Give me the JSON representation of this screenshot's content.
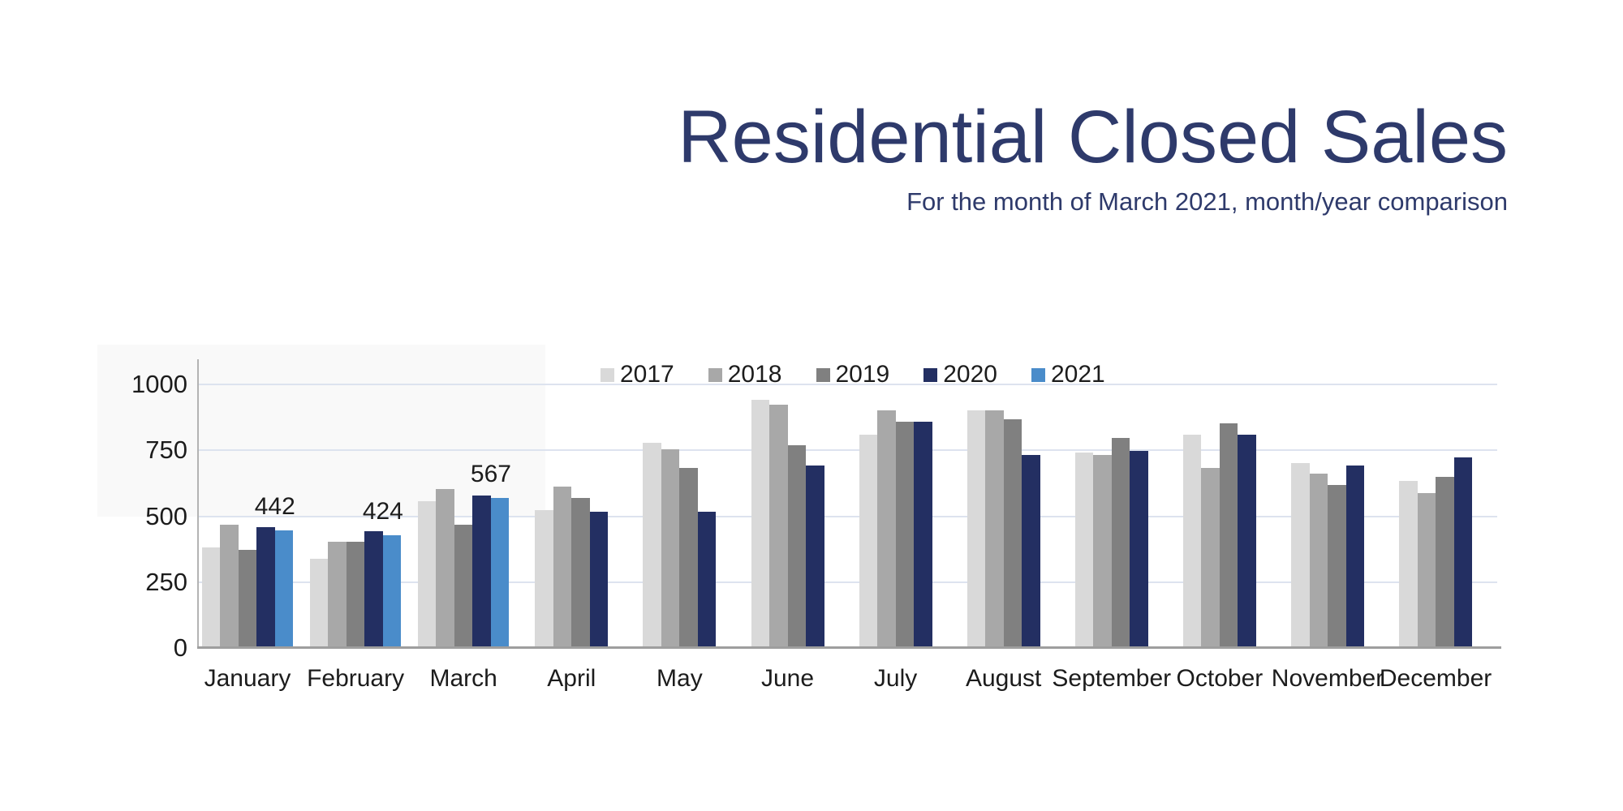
{
  "title": "Residential Closed Sales",
  "subtitle": "For the month of March 2021, month/year comparison",
  "palette": {
    "title_color": "#2e3a6b",
    "grid_color": "#dde3ef",
    "axis_color": "#b3b3b3",
    "baseline_color": "#9e9e9e",
    "label_color": "#1c1c1c"
  },
  "chart_data": {
    "type": "bar",
    "title": "Residential Closed Sales",
    "subtitle": "For the month of March 2021, month/year comparison",
    "categories": [
      "January",
      "February",
      "March",
      "April",
      "May",
      "June",
      "July",
      "August",
      "September",
      "October",
      "November",
      "December"
    ],
    "series": [
      {
        "name": "2017",
        "color": "#d9d9d9",
        "values": [
          380,
          335,
          555,
          520,
          775,
          940,
          805,
          900,
          740,
          805,
          700,
          630
        ]
      },
      {
        "name": "2018",
        "color": "#a8a8a8",
        "values": [
          465,
          400,
          600,
          610,
          750,
          920,
          900,
          900,
          730,
          680,
          660,
          585
        ]
      },
      {
        "name": "2019",
        "color": "#808080",
        "values": [
          370,
          400,
          465,
          565,
          680,
          765,
          855,
          865,
          795,
          850,
          615,
          645
        ]
      },
      {
        "name": "2020",
        "color": "#232f62",
        "values": [
          455,
          440,
          575,
          515,
          515,
          690,
          855,
          730,
          745,
          805,
          690,
          720
        ]
      },
      {
        "name": "2021",
        "color": "#4a8cca",
        "values": [
          442,
          424,
          567,
          null,
          null,
          null,
          null,
          null,
          null,
          null,
          null,
          null
        ]
      }
    ],
    "data_labels": [
      {
        "category": "January",
        "series": "2021",
        "text": "442"
      },
      {
        "category": "February",
        "series": "2021",
        "text": "424"
      },
      {
        "category": "March",
        "series": "2021",
        "text": "567"
      }
    ],
    "xlabel": "",
    "ylabel": "",
    "ylim": [
      0,
      1000
    ],
    "yticks": [
      0,
      250,
      500,
      750,
      1000
    ],
    "grid": true,
    "legend_position": "top"
  }
}
